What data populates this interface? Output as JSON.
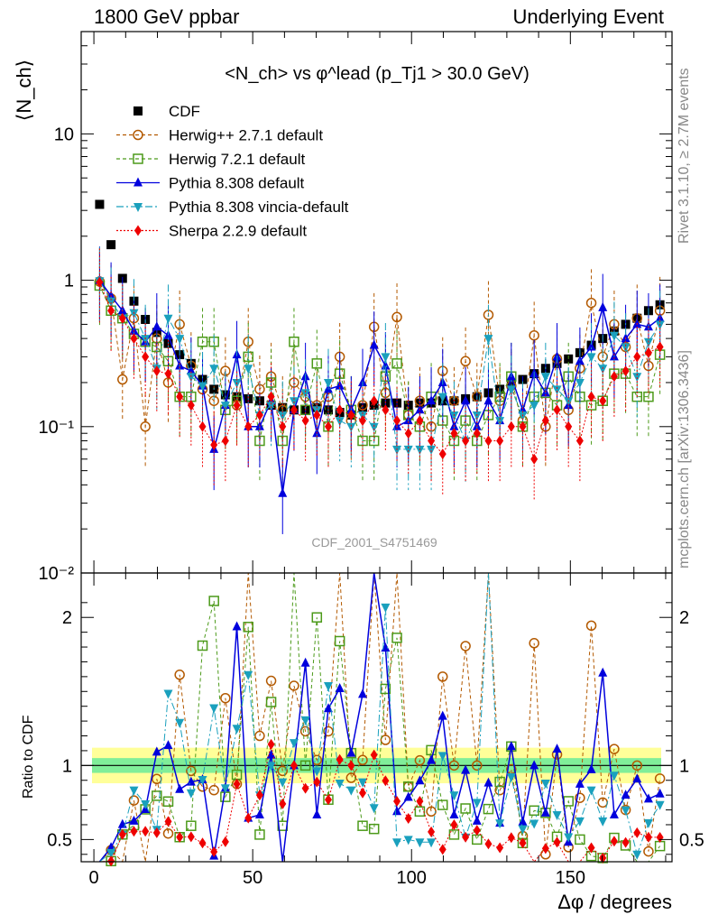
{
  "header": {
    "left": "1800 GeV ppbar",
    "right": "Underlying Event"
  },
  "side_labels": {
    "rivet": "Rivet 3.1.10, ≥ 2.7M events",
    "mcplots": "mcplots.cern.ch [arXiv:1306.3436]"
  },
  "watermark": "CDF_2001_S4751469",
  "colors": {
    "cdf": "#000000",
    "herwigpp": "#b35900",
    "herwig7": "#4c9a1a",
    "pythia": "#0000dd",
    "vincia": "#1aa0bd",
    "sherpa": "#ee0000",
    "band_outer": "#ffff99",
    "band_inner": "#80ee99"
  },
  "chart_data": [
    {
      "type": "scatter",
      "panel": "main",
      "title": "<N_ch> vs φ^lead (p_Tj1 > 30.0 GeV)",
      "ylabel": "⟨N_ch⟩",
      "yscale": "log",
      "ylim": [
        0.01,
        50
      ],
      "xlim": [
        -4,
        182
      ],
      "yticks": [
        "10⁻²",
        "10⁻¹",
        "1",
        "10"
      ],
      "legend_position": "top-left",
      "x": [
        1.8,
        5.4,
        9.0,
        12.6,
        16.2,
        19.8,
        23.4,
        27.0,
        30.6,
        34.2,
        37.8,
        41.4,
        45.0,
        48.6,
        52.2,
        55.8,
        59.4,
        63.0,
        66.6,
        70.2,
        73.8,
        77.4,
        81.0,
        84.6,
        88.2,
        91.8,
        95.4,
        99.0,
        102.6,
        106.2,
        109.8,
        113.4,
        117.0,
        120.6,
        124.2,
        127.8,
        131.4,
        135.0,
        138.6,
        142.2,
        145.8,
        149.4,
        153.0,
        156.6,
        160.2,
        163.8,
        167.4,
        171.0,
        174.6,
        178.2
      ],
      "series": [
        {
          "name": "CDF",
          "key": "cdf",
          "values": [
            3.3,
            1.75,
            1.03,
            0.72,
            0.54,
            0.44,
            0.37,
            0.31,
            0.27,
            0.21,
            0.18,
            0.165,
            0.16,
            0.155,
            0.15,
            0.14,
            0.135,
            0.13,
            0.13,
            0.135,
            0.13,
            0.125,
            0.12,
            0.135,
            0.14,
            0.145,
            0.145,
            0.14,
            0.145,
            0.145,
            0.15,
            0.15,
            0.155,
            0.16,
            0.17,
            0.18,
            0.195,
            0.21,
            0.23,
            0.25,
            0.27,
            0.29,
            0.32,
            0.36,
            0.4,
            0.45,
            0.5,
            0.55,
            0.62,
            0.68
          ]
        },
        {
          "name": "Herwig++ 2.7.1 default",
          "key": "herwigpp",
          "values": [
            0.98,
            0.75,
            0.21,
            0.55,
            0.1,
            0.4,
            0.2,
            0.5,
            0.26,
            0.18,
            0.15,
            0.24,
            0.14,
            0.38,
            0.18,
            0.22,
            0.13,
            0.2,
            0.16,
            0.14,
            0.16,
            0.3,
            0.11,
            0.14,
            0.48,
            0.17,
            0.56,
            0.12,
            0.15,
            0.1,
            0.24,
            0.15,
            0.28,
            0.16,
            0.58,
            0.15,
            0.19,
            0.11,
            0.42,
            0.1,
            0.29,
            0.13,
            0.25,
            0.7,
            0.3,
            0.5,
            0.35,
            0.55,
            0.26,
            0.62
          ]
        },
        {
          "name": "Herwig 7.2.1 default",
          "key": "herwig7",
          "values": [
            0.92,
            0.62,
            0.55,
            0.43,
            0.38,
            0.35,
            0.28,
            0.16,
            0.16,
            0.38,
            0.38,
            0.13,
            0.15,
            0.3,
            0.08,
            0.2,
            0.08,
            0.38,
            0.13,
            0.27,
            0.1,
            0.23,
            0.13,
            0.08,
            0.08,
            0.22,
            0.27,
            0.12,
            0.1,
            0.16,
            0.11,
            0.08,
            0.11,
            0.08,
            0.12,
            0.16,
            0.22,
            0.1,
            0.16,
            0.17,
            0.14,
            0.22,
            0.16,
            0.14,
            0.15,
            0.23,
            0.23,
            0.16,
            0.16,
            0.31
          ]
        },
        {
          "name": "Pythia 8.308 default",
          "key": "pythia",
          "values": [
            1.0,
            0.78,
            0.62,
            0.45,
            0.38,
            0.48,
            0.42,
            0.26,
            0.24,
            0.19,
            0.07,
            0.14,
            0.31,
            0.1,
            0.1,
            0.15,
            0.035,
            0.13,
            0.22,
            0.09,
            0.18,
            0.19,
            0.13,
            0.2,
            0.36,
            0.26,
            0.1,
            0.11,
            0.13,
            0.15,
            0.2,
            0.1,
            0.15,
            0.1,
            0.15,
            0.11,
            0.22,
            0.13,
            0.23,
            0.17,
            0.3,
            0.14,
            0.28,
            0.35,
            0.65,
            0.3,
            0.4,
            0.5,
            0.48,
            0.55
          ]
        },
        {
          "name": "Pythia 8.308 vincia-default",
          "key": "vincia",
          "values": [
            0.99,
            0.72,
            0.55,
            0.6,
            0.4,
            0.25,
            0.55,
            0.4,
            0.22,
            0.19,
            0.25,
            0.14,
            0.2,
            0.25,
            0.12,
            0.14,
            0.12,
            0.15,
            0.17,
            0.13,
            0.2,
            0.11,
            0.1,
            0.12,
            0.1,
            0.3,
            0.07,
            0.07,
            0.07,
            0.07,
            0.16,
            0.12,
            0.08,
            0.12,
            0.4,
            0.11,
            0.18,
            0.12,
            0.14,
            0.22,
            0.18,
            0.15,
            0.2,
            0.3,
            0.25,
            0.42,
            0.35,
            0.22,
            0.38,
            0.5
          ]
        },
        {
          "name": "Sherpa 2.2.9 default",
          "key": "sherpa",
          "values": [
            0.97,
            0.62,
            0.55,
            0.4,
            0.3,
            0.24,
            0.23,
            0.16,
            0.14,
            0.1,
            0.075,
            0.08,
            0.14,
            0.1,
            0.12,
            0.16,
            0.1,
            0.13,
            0.11,
            0.12,
            0.1,
            0.13,
            0.12,
            0.11,
            0.15,
            0.13,
            0.11,
            0.09,
            0.11,
            0.08,
            0.065,
            0.09,
            0.08,
            0.09,
            0.08,
            0.08,
            0.1,
            0.1,
            0.06,
            0.11,
            0.13,
            0.1,
            0.08,
            0.16,
            0.15,
            0.22,
            0.24,
            0.3,
            0.32,
            0.35
          ]
        }
      ]
    },
    {
      "type": "scatter",
      "panel": "ratio",
      "ylabel": "Ratio to CDF",
      "xlabel": "Δφ / degrees",
      "ylim": [
        0.35,
        2.3
      ],
      "xlim": [
        -4,
        182
      ],
      "xticks": [
        0,
        50,
        100,
        150
      ],
      "yticks": [
        0.5,
        1,
        2
      ],
      "band_inner": [
        0.95,
        1.05
      ],
      "band_outer": [
        0.88,
        1.12
      ]
    }
  ]
}
